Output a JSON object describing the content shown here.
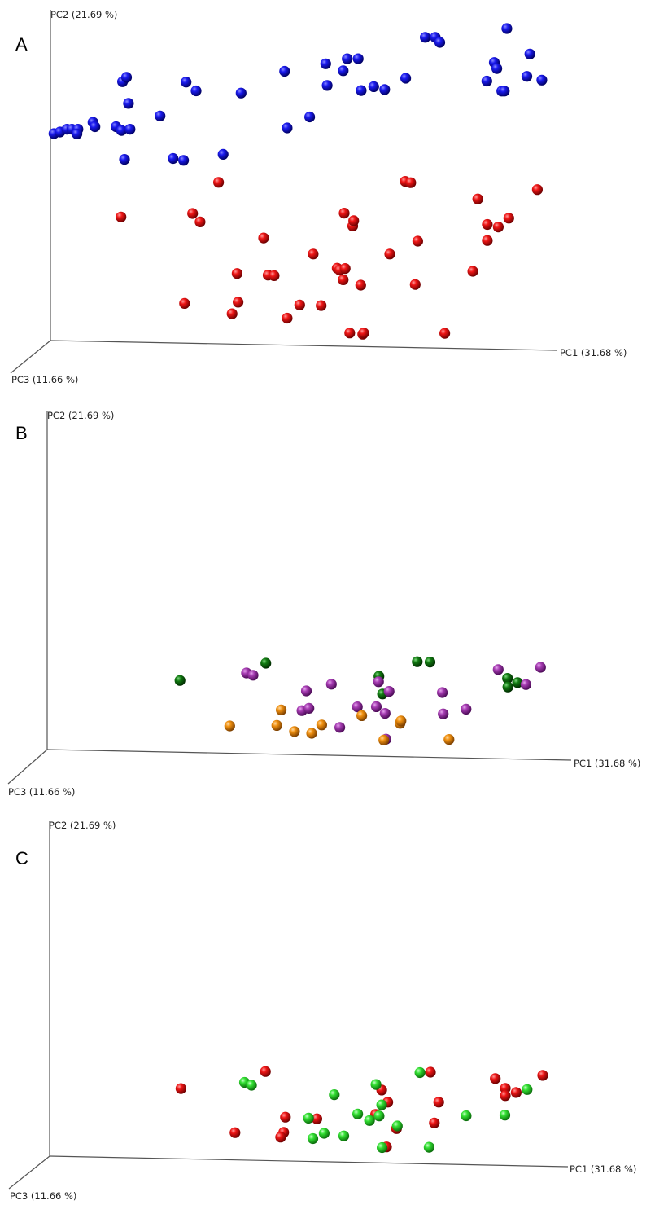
{
  "colors": {
    "blue": "#1010d8",
    "red": "#d81010",
    "dark_green": "#0a6a0a",
    "purple": "#9b2fa6",
    "orange": "#e8870e",
    "light_green": "#2ed82e"
  },
  "chart_data": [
    {
      "type": "scatter",
      "panel": "A",
      "xlabel": "PC1 (31.68 %)",
      "ylabel": "PC2 (21.69 %)",
      "zlabel": "PC3 (11.66 %)",
      "xlim": [
        0,
        100
      ],
      "ylim": [
        0,
        100
      ],
      "series": [
        {
          "color": "blue",
          "x": [
            0.7,
            1.9,
            3.3,
            4.3,
            5.5,
            5.3,
            8.5,
            8.9,
            13.1,
            14.2,
            14.4,
            15.6,
            14.8,
            15.9,
            15.2,
            21.9,
            24.5,
            26.6,
            27.1,
            29.1,
            34.5,
            38.1,
            46.8,
            47.3,
            51.8,
            55.0,
            55.3,
            58.5,
            59.3,
            61.5,
            62.1,
            64.6,
            66.8,
            71.0,
            74.9,
            76.9,
            77.8,
            87.2,
            88.7,
            89.2,
            90.2,
            90.7,
            91.2,
            95.2,
            95.8,
            98.2
          ],
          "y": [
            64.0,
            64.5,
            65.4,
            65.4,
            65.4,
            63.9,
            67.6,
            66.2,
            66.2,
            65.0,
            80.5,
            73.6,
            55.8,
            65.4,
            81.9,
            69.6,
            56.1,
            55.5,
            80.4,
            77.6,
            57.4,
            76.9,
            83.8,
            65.8,
            69.3,
            86.2,
            79.3,
            84.0,
            87.8,
            87.8,
            77.7,
            78.9,
            78.0,
            81.6,
            94.6,
            94.6,
            93.0,
            80.7,
            86.6,
            84.7,
            77.5,
            77.5,
            97.4,
            82.2,
            89.3,
            81.0
          ]
        },
        {
          "color": "red",
          "x": [
            14.1,
            26.8,
            28.4,
            29.9,
            33.6,
            36.3,
            37.3,
            37.5,
            42.6,
            43.5,
            44.7,
            47.3,
            49.8,
            52.5,
            54.1,
            57.3,
            57.8,
            58.5,
            58.7,
            58.9,
            59.8,
            60.4,
            60.6,
            62.0,
            62.4,
            62.6,
            67.8,
            70.9,
            72.0,
            72.9,
            73.4,
            78.8,
            84.4,
            85.4,
            87.3,
            87.3,
            89.5,
            91.6,
            97.3
          ],
          "y": [
            37.5,
            10.0,
            38.6,
            35.9,
            48.5,
            6.7,
            19.5,
            10.4,
            30.8,
            19.0,
            18.8,
            5.3,
            9.5,
            25.7,
            9.3,
            21.2,
            20.6,
            17.5,
            38.7,
            21.1,
            0.6,
            34.6,
            36.3,
            15.8,
            0.2,
            0.6,
            25.7,
            48.8,
            48.4,
            16.0,
            29.8,
            0.5,
            20.2,
            43.2,
            30.0,
            35.1,
            34.3,
            37.1,
            46.2
          ]
        }
      ]
    },
    {
      "type": "scatter",
      "panel": "B",
      "xlabel": "PC1 (31.68 %)",
      "ylabel": "PC2 (21.69 %)",
      "zlabel": "PC3 (11.66 %)",
      "xlim": [
        0,
        100
      ],
      "ylim": [
        0,
        100
      ],
      "series": [
        {
          "color": "dark_green",
          "x": [
            13.9,
            33.4,
            59.1,
            59.9,
            67.8,
            70.7,
            88.3,
            88.4,
            90.6
          ],
          "y": [
            38.9,
            49.5,
            41.5,
            30.6,
            50.4,
            50.2,
            40.2,
            34.9,
            37.6
          ]
        },
        {
          "color": "purple",
          "x": [
            29.0,
            30.5,
            42.6,
            41.6,
            43.2,
            48.3,
            50.2,
            54.2,
            58.5,
            59.0,
            60.5,
            60.7,
            61.4,
            73.5,
            73.7,
            78.9,
            86.2,
            92.5,
            95.8
          ],
          "y": [
            43.5,
            42.1,
            32.5,
            20.4,
            21.8,
            36.6,
            10.1,
            22.7,
            22.8,
            38.1,
            18.7,
            2.9,
            32.2,
            31.5,
            18.4,
            21.3,
            45.6,
            36.4,
            47.0
          ]
        },
        {
          "color": "orange",
          "x": [
            25.2,
            36.9,
            35.9,
            39.9,
            43.8,
            46.1,
            55.2,
            60.2,
            63.9,
            64.1,
            75.0
          ],
          "y": [
            11.0,
            20.8,
            11.3,
            7.6,
            6.5,
            11.6,
            17.3,
            2.3,
            12.6,
            14.1,
            2.7
          ]
        }
      ]
    },
    {
      "type": "scatter",
      "panel": "C",
      "xlabel": "PC1 (31.68 %)",
      "ylabel": "PC2 (21.69 %)",
      "zlabel": "PC3 (11.66 %)",
      "xlim": [
        0,
        100
      ],
      "ylim": [
        0,
        100
      ],
      "series": [
        {
          "color": "red",
          "x": [
            14.1,
            33.5,
            26.5,
            38.1,
            37.7,
            37.0,
            45.3,
            58.8,
            60.2,
            61.3,
            61.6,
            63.6,
            71.4,
            72.3,
            73.3,
            86.3,
            88.6,
            88.6,
            91.1,
            97.2
          ],
          "y": [
            38.7,
            49.4,
            11.1,
            20.8,
            11.3,
            8.3,
            19.8,
            22.5,
            37.8,
            2.2,
            30.2,
            13.6,
            49.0,
            17.2,
            30.2,
            45.0,
            38.9,
            34.3,
            36.3,
            47.0
          ],
          "z": [
            0,
            0,
            0,
            0,
            0,
            0,
            0,
            0,
            0,
            0,
            0,
            0,
            0,
            0,
            0,
            0,
            0,
            0,
            0,
            0
          ]
        },
        {
          "color": "light_green",
          "x": [
            28.7,
            30.3,
            43.4,
            44.4,
            47.0,
            49.3,
            51.5,
            54.7,
            57.4,
            58.9,
            59.6,
            60.2,
            60.3,
            63.8,
            69.0,
            71.1,
            79.6,
            88.5,
            93.6
          ],
          "y": [
            42.6,
            40.8,
            20.2,
            7.4,
            10.7,
            34.9,
            9.1,
            22.8,
            18.7,
            41.3,
            21.6,
            28.5,
            1.8,
            15.3,
            48.7,
            2.0,
            21.7,
            22.1,
            38.1
          ]
        }
      ]
    }
  ]
}
